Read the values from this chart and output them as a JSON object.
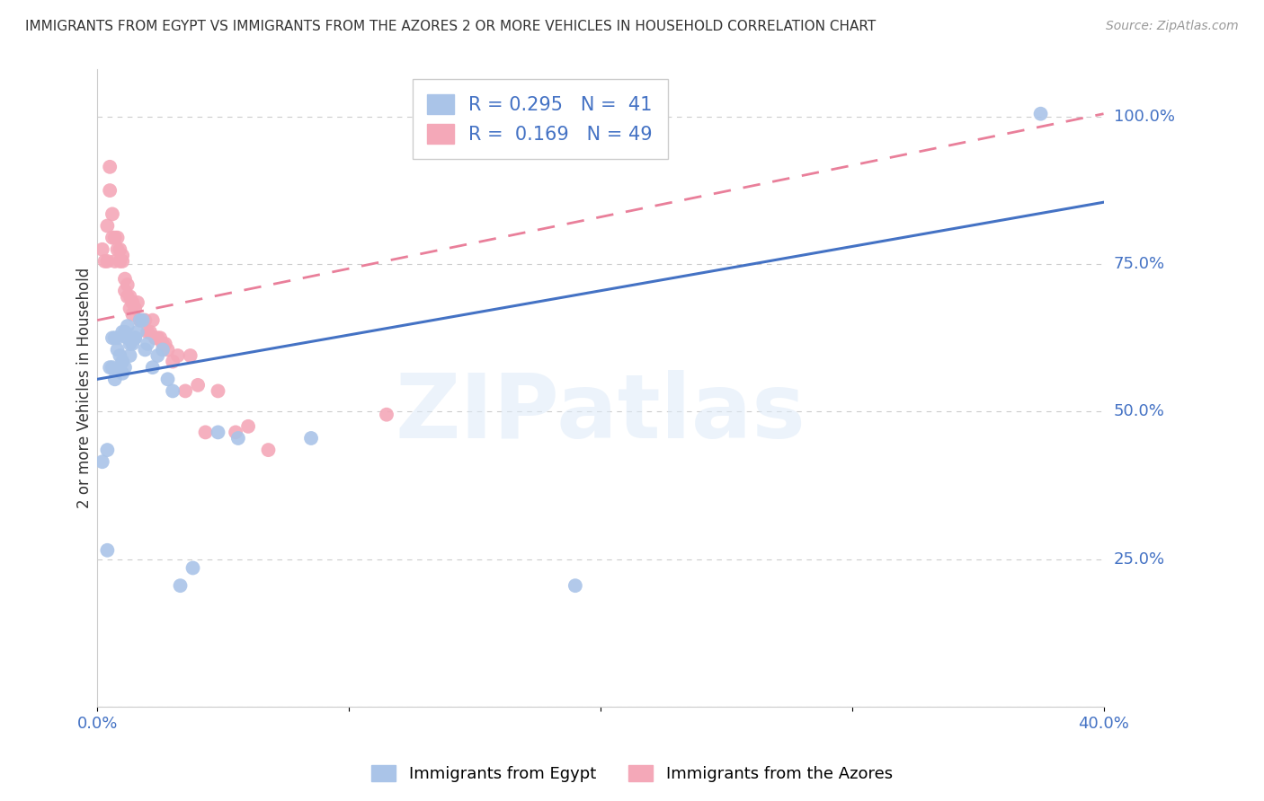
{
  "title": "IMMIGRANTS FROM EGYPT VS IMMIGRANTS FROM THE AZORES 2 OR MORE VEHICLES IN HOUSEHOLD CORRELATION CHART",
  "source": "Source: ZipAtlas.com",
  "ylabel": "2 or more Vehicles in Household",
  "xlim": [
    0.0,
    0.4
  ],
  "ylim": [
    0.0,
    1.08
  ],
  "legend1_label": "R = 0.295   N =  41",
  "legend2_label": "R =  0.169   N = 49",
  "series1_color": "#aac4e8",
  "series2_color": "#f4a8b8",
  "line1_color": "#4472c4",
  "line2_color": "#e97f9a",
  "grid_color": "#cccccc",
  "background_color": "#ffffff",
  "series1_x": [
    0.002,
    0.004,
    0.004,
    0.005,
    0.006,
    0.006,
    0.007,
    0.007,
    0.008,
    0.008,
    0.009,
    0.009,
    0.01,
    0.01,
    0.01,
    0.011,
    0.011,
    0.012,
    0.012,
    0.013,
    0.013,
    0.014,
    0.015,
    0.015,
    0.016,
    0.017,
    0.018,
    0.019,
    0.02,
    0.022,
    0.024,
    0.026,
    0.028,
    0.03,
    0.033,
    0.038,
    0.048,
    0.056,
    0.085,
    0.19,
    0.375
  ],
  "series1_y": [
    0.415,
    0.265,
    0.435,
    0.575,
    0.575,
    0.625,
    0.555,
    0.625,
    0.605,
    0.625,
    0.575,
    0.595,
    0.565,
    0.585,
    0.635,
    0.635,
    0.575,
    0.625,
    0.645,
    0.595,
    0.615,
    0.615,
    0.625,
    0.625,
    0.635,
    0.655,
    0.655,
    0.605,
    0.615,
    0.575,
    0.595,
    0.605,
    0.555,
    0.535,
    0.205,
    0.235,
    0.465,
    0.455,
    0.455,
    0.205,
    1.005
  ],
  "series2_x": [
    0.002,
    0.003,
    0.004,
    0.004,
    0.005,
    0.005,
    0.006,
    0.006,
    0.007,
    0.007,
    0.008,
    0.008,
    0.009,
    0.009,
    0.01,
    0.01,
    0.011,
    0.011,
    0.012,
    0.012,
    0.013,
    0.013,
    0.014,
    0.014,
    0.015,
    0.016,
    0.017,
    0.018,
    0.019,
    0.02,
    0.021,
    0.022,
    0.023,
    0.024,
    0.025,
    0.026,
    0.027,
    0.028,
    0.03,
    0.032,
    0.035,
    0.037,
    0.04,
    0.043,
    0.048,
    0.055,
    0.06,
    0.068,
    0.115
  ],
  "series2_y": [
    0.775,
    0.755,
    0.815,
    0.755,
    0.875,
    0.915,
    0.795,
    0.835,
    0.755,
    0.795,
    0.775,
    0.795,
    0.775,
    0.755,
    0.765,
    0.755,
    0.705,
    0.725,
    0.695,
    0.715,
    0.675,
    0.695,
    0.685,
    0.665,
    0.675,
    0.685,
    0.655,
    0.655,
    0.655,
    0.635,
    0.635,
    0.655,
    0.625,
    0.625,
    0.625,
    0.615,
    0.615,
    0.605,
    0.585,
    0.595,
    0.535,
    0.595,
    0.545,
    0.465,
    0.535,
    0.465,
    0.475,
    0.435,
    0.495
  ],
  "line1_x0": 0.0,
  "line1_y0": 0.555,
  "line1_x1": 0.4,
  "line1_y1": 0.855,
  "line2_x0": 0.0,
  "line2_y0": 0.655,
  "line2_x1": 0.4,
  "line2_y1": 1.005
}
